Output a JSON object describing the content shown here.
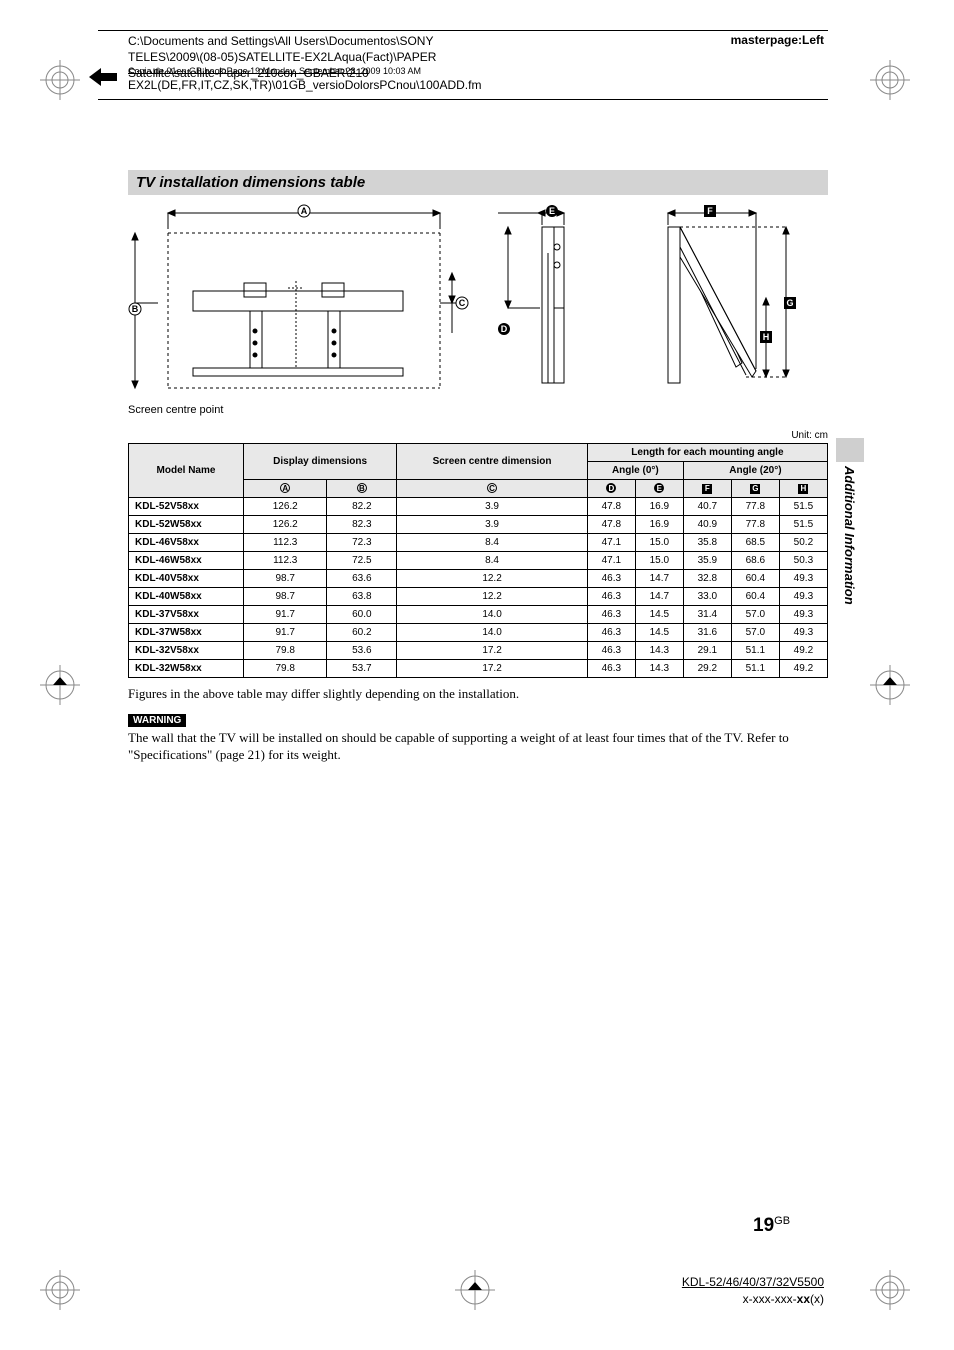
{
  "header": {
    "path_line1": "C:\\Documents and Settings\\All Users\\Documentos\\SONY",
    "path_line2": "TELES\\2009\\(08-05)SATELLITE-EX2LAqua(Fact)\\PAPER",
    "path_line3_strike": "Satellite\\satellite-Paper_210con_GBAER\\210",
    "path_line3_prefix": "Copia de 01en GB.book  Page 19  Monday, September 28, 2009  10:03 AM",
    "path_line4": "EX2L(DE,FR,IT,CZ,SK,TR)\\01GB_versioDolorsPCnou\\100ADD.fm",
    "masterpage": "masterpage:Left"
  },
  "section": {
    "title": "TV installation dimensions table",
    "screen_centre": "Screen centre point",
    "unit": "Unit: cm"
  },
  "tableHead": {
    "model": "Model Name",
    "display": "Display dimensions",
    "screen": "Screen centre dimension",
    "length": "Length for each mounting angle",
    "angle0": "Angle (0°)",
    "angle20": "Angle (20°)",
    "colA": "A",
    "colB": "B",
    "colC": "C",
    "colD": "D",
    "colE": "E",
    "colF": "F",
    "colG": "G",
    "colH": "H"
  },
  "rows": [
    {
      "model": "KDL-52V58xx",
      "a": "126.2",
      "b": "82.2",
      "c": "3.9",
      "d": "47.8",
      "e": "16.9",
      "f": "40.7",
      "g": "77.8",
      "h": "51.5"
    },
    {
      "model": "KDL-52W58xx",
      "a": "126.2",
      "b": "82.3",
      "c": "3.9",
      "d": "47.8",
      "e": "16.9",
      "f": "40.9",
      "g": "77.8",
      "h": "51.5"
    },
    {
      "model": "KDL-46V58xx",
      "a": "112.3",
      "b": "72.3",
      "c": "8.4",
      "d": "47.1",
      "e": "15.0",
      "f": "35.8",
      "g": "68.5",
      "h": "50.2"
    },
    {
      "model": "KDL-46W58xx",
      "a": "112.3",
      "b": "72.5",
      "c": "8.4",
      "d": "47.1",
      "e": "15.0",
      "f": "35.9",
      "g": "68.6",
      "h": "50.3"
    },
    {
      "model": "KDL-40V58xx",
      "a": "98.7",
      "b": "63.6",
      "c": "12.2",
      "d": "46.3",
      "e": "14.7",
      "f": "32.8",
      "g": "60.4",
      "h": "49.3"
    },
    {
      "model": "KDL-40W58xx",
      "a": "98.7",
      "b": "63.8",
      "c": "12.2",
      "d": "46.3",
      "e": "14.7",
      "f": "33.0",
      "g": "60.4",
      "h": "49.3"
    },
    {
      "model": "KDL-37V58xx",
      "a": "91.7",
      "b": "60.0",
      "c": "14.0",
      "d": "46.3",
      "e": "14.5",
      "f": "31.4",
      "g": "57.0",
      "h": "49.3"
    },
    {
      "model": "KDL-37W58xx",
      "a": "91.7",
      "b": "60.2",
      "c": "14.0",
      "d": "46.3",
      "e": "14.5",
      "f": "31.6",
      "g": "57.0",
      "h": "49.3"
    },
    {
      "model": "KDL-32V58xx",
      "a": "79.8",
      "b": "53.6",
      "c": "17.2",
      "d": "46.3",
      "e": "14.3",
      "f": "29.1",
      "g": "51.1",
      "h": "49.2"
    },
    {
      "model": "KDL-32W58xx",
      "a": "79.8",
      "b": "53.7",
      "c": "17.2",
      "d": "46.3",
      "e": "14.3",
      "f": "29.2",
      "g": "51.1",
      "h": "49.2"
    }
  ],
  "notes": {
    "table_note": "Figures in the above table may differ slightly depending on the installation.",
    "warning_label": "WARNING",
    "warning_text": "The wall that the TV will be installed on should be capable of supporting a weight of at least four times that of the TV. Refer to \"Specifications\" (page 21) for its weight."
  },
  "sidebar": {
    "label": "Additional Information"
  },
  "page": {
    "num": "19",
    "gb": "GB"
  },
  "footer": {
    "model": "KDL-52/46/40/37/32V5500",
    "part": "x-xxx-xxx-",
    "part_bold": "xx",
    "part_suffix": "(x)"
  },
  "diagram_labels": {
    "A": "A",
    "B": "B",
    "C": "C",
    "D": "D",
    "E": "E",
    "F": "F",
    "G": "G",
    "H": "H"
  }
}
